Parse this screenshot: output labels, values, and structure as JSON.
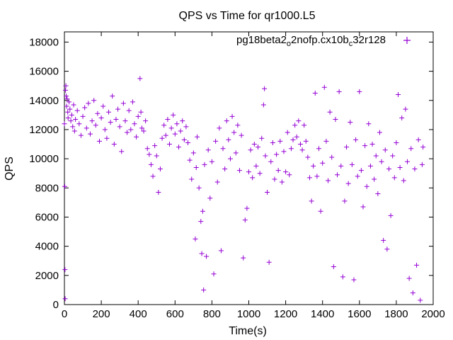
{
  "chart_data": {
    "type": "scatter",
    "title": "QPS vs Time for qr1000.L5",
    "xlabel": "Time(s)",
    "ylabel": "QPS",
    "xlim": [
      0,
      2000
    ],
    "ylim": [
      0,
      18700
    ],
    "x_ticks": [
      "0",
      "200",
      "400",
      "600",
      "800",
      "1000",
      "1200",
      "1400",
      "1600",
      "1800",
      "2000"
    ],
    "y_ticks": [
      "0",
      "2000",
      "4000",
      "6000",
      "8000",
      "10000",
      "12000",
      "14000",
      "16000",
      "18000"
    ],
    "grid": false,
    "legend_position": "top-right",
    "marker": "plus",
    "series": [
      {
        "name": "pg18beta2_o2nofp.cx10b_c32r128",
        "color": "#9400d3",
        "points": [
          [
            0,
            12400
          ],
          [
            2,
            8100
          ],
          [
            3,
            2400
          ],
          [
            4,
            400
          ],
          [
            6,
            14700
          ],
          [
            8,
            15000
          ],
          [
            10,
            14300
          ],
          [
            12,
            13600
          ],
          [
            15,
            14100
          ],
          [
            18,
            13200
          ],
          [
            20,
            12800
          ],
          [
            25,
            13900
          ],
          [
            30,
            13400
          ],
          [
            35,
            12600
          ],
          [
            40,
            13000
          ],
          [
            45,
            12200
          ],
          [
            50,
            13700
          ],
          [
            55,
            11900
          ],
          [
            60,
            12700
          ],
          [
            70,
            13300
          ],
          [
            80,
            12400
          ],
          [
            90,
            11600
          ],
          [
            100,
            12900
          ],
          [
            110,
            13500
          ],
          [
            120,
            12100
          ],
          [
            130,
            13800
          ],
          [
            140,
            11700
          ],
          [
            150,
            12600
          ],
          [
            160,
            14000
          ],
          [
            170,
            12300
          ],
          [
            180,
            13100
          ],
          [
            190,
            11200
          ],
          [
            200,
            12800
          ],
          [
            210,
            13600
          ],
          [
            220,
            12000
          ],
          [
            230,
            11400
          ],
          [
            240,
            13200
          ],
          [
            250,
            12500
          ],
          [
            260,
            14300
          ],
          [
            270,
            11000
          ],
          [
            280,
            12700
          ],
          [
            290,
            13400
          ],
          [
            300,
            12200
          ],
          [
            310,
            10500
          ],
          [
            320,
            13800
          ],
          [
            330,
            12600
          ],
          [
            340,
            11800
          ],
          [
            350,
            13300
          ],
          [
            360,
            12000
          ],
          [
            370,
            13900
          ],
          [
            380,
            12400
          ],
          [
            390,
            11500
          ],
          [
            400,
            12900
          ],
          [
            410,
            15500
          ],
          [
            415,
            13200
          ],
          [
            420,
            12100
          ],
          [
            430,
            11900
          ],
          [
            440,
            12600
          ],
          [
            450,
            10700
          ],
          [
            460,
            10300
          ],
          [
            470,
            9600
          ],
          [
            480,
            8800
          ],
          [
            490,
            10900
          ],
          [
            500,
            10200
          ],
          [
            510,
            7700
          ],
          [
            520,
            9300
          ],
          [
            530,
            11400
          ],
          [
            540,
            12300
          ],
          [
            550,
            11600
          ],
          [
            560,
            12700
          ],
          [
            570,
            11000
          ],
          [
            580,
            12100
          ],
          [
            590,
            13000
          ],
          [
            600,
            11700
          ],
          [
            610,
            12400
          ],
          [
            620,
            10800
          ],
          [
            630,
            11900
          ],
          [
            640,
            12600
          ],
          [
            650,
            11300
          ],
          [
            660,
            12200
          ],
          [
            670,
            11100
          ],
          [
            680,
            9900
          ],
          [
            690,
            8600
          ],
          [
            700,
            10400
          ],
          [
            710,
            4500
          ],
          [
            715,
            9400
          ],
          [
            720,
            11500
          ],
          [
            730,
            8000
          ],
          [
            740,
            5700
          ],
          [
            745,
            3500
          ],
          [
            750,
            6400
          ],
          [
            755,
            1000
          ],
          [
            760,
            9600
          ],
          [
            770,
            3300
          ],
          [
            780,
            10600
          ],
          [
            790,
            7300
          ],
          [
            800,
            9800
          ],
          [
            810,
            2100
          ],
          [
            820,
            11200
          ],
          [
            830,
            8400
          ],
          [
            840,
            12100
          ],
          [
            850,
            3700
          ],
          [
            860,
            10700
          ],
          [
            870,
            9300
          ],
          [
            880,
            12600
          ],
          [
            890,
            11300
          ],
          [
            900,
            10000
          ],
          [
            910,
            12900
          ],
          [
            920,
            11800
          ],
          [
            930,
            10400
          ],
          [
            940,
            12300
          ],
          [
            950,
            9200
          ],
          [
            960,
            11600
          ],
          [
            970,
            3200
          ],
          [
            980,
            5800
          ],
          [
            990,
            6600
          ],
          [
            1000,
            9100
          ],
          [
            1010,
            10600
          ],
          [
            1020,
            8700
          ],
          [
            1030,
            11000
          ],
          [
            1040,
            9500
          ],
          [
            1050,
            10800
          ],
          [
            1060,
            9000
          ],
          [
            1070,
            11400
          ],
          [
            1080,
            13700
          ],
          [
            1085,
            14800
          ],
          [
            1090,
            10200
          ],
          [
            1100,
            7700
          ],
          [
            1110,
            2900
          ],
          [
            1120,
            9800
          ],
          [
            1130,
            11100
          ],
          [
            1140,
            8600
          ],
          [
            1150,
            10300
          ],
          [
            1160,
            9200
          ],
          [
            1170,
            11200
          ],
          [
            1180,
            8400
          ],
          [
            1190,
            10500
          ],
          [
            1200,
            9100
          ],
          [
            1210,
            11800
          ],
          [
            1220,
            8900
          ],
          [
            1230,
            10700
          ],
          [
            1240,
            11300
          ],
          [
            1250,
            12300
          ],
          [
            1260,
            11500
          ],
          [
            1270,
            12600
          ],
          [
            1280,
            11000
          ],
          [
            1290,
            10600
          ],
          [
            1300,
            12300
          ],
          [
            1310,
            11200
          ],
          [
            1320,
            10100
          ],
          [
            1330,
            8700
          ],
          [
            1340,
            7100
          ],
          [
            1350,
            9500
          ],
          [
            1360,
            14500
          ],
          [
            1370,
            8800
          ],
          [
            1380,
            10700
          ],
          [
            1390,
            6400
          ],
          [
            1400,
            9700
          ],
          [
            1410,
            14900
          ],
          [
            1420,
            11200
          ],
          [
            1430,
            8500
          ],
          [
            1440,
            13200
          ],
          [
            1450,
            10100
          ],
          [
            1460,
            2600
          ],
          [
            1470,
            12700
          ],
          [
            1480,
            8900
          ],
          [
            1490,
            14600
          ],
          [
            1500,
            9500
          ],
          [
            1510,
            1900
          ],
          [
            1520,
            7100
          ],
          [
            1530,
            10800
          ],
          [
            1540,
            8300
          ],
          [
            1550,
            12500
          ],
          [
            1560,
            9600
          ],
          [
            1570,
            1700
          ],
          [
            1580,
            11300
          ],
          [
            1590,
            8800
          ],
          [
            1600,
            14600
          ],
          [
            1610,
            9200
          ],
          [
            1620,
            6700
          ],
          [
            1630,
            10900
          ],
          [
            1640,
            8100
          ],
          [
            1650,
            12400
          ],
          [
            1660,
            9500
          ],
          [
            1670,
            11000
          ],
          [
            1680,
            8600
          ],
          [
            1690,
            10200
          ],
          [
            1700,
            7600
          ],
          [
            1710,
            11800
          ],
          [
            1720,
            9800
          ],
          [
            1730,
            4400
          ],
          [
            1740,
            10600
          ],
          [
            1750,
            3800
          ],
          [
            1760,
            9300
          ],
          [
            1770,
            6100
          ],
          [
            1780,
            10200
          ],
          [
            1790,
            8700
          ],
          [
            1800,
            11100
          ],
          [
            1810,
            14400
          ],
          [
            1820,
            9400
          ],
          [
            1830,
            12800
          ],
          [
            1840,
            8500
          ],
          [
            1850,
            13400
          ],
          [
            1860,
            9800
          ],
          [
            1870,
            1800
          ],
          [
            1880,
            10700
          ],
          [
            1890,
            800
          ],
          [
            1900,
            9300
          ],
          [
            1910,
            2700
          ],
          [
            1920,
            11300
          ],
          [
            1930,
            300
          ],
          [
            1940,
            9600
          ],
          [
            1945,
            10800
          ]
        ]
      }
    ]
  }
}
